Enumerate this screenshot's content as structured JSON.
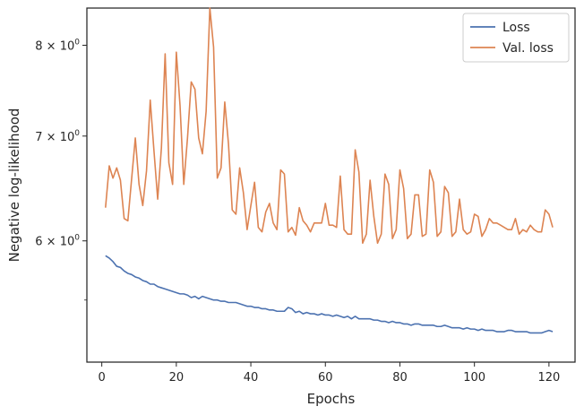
{
  "chart_data": {
    "type": "line",
    "xlabel": "Epochs",
    "ylabel": "Negative log-likelihood",
    "xlim": [
      -4,
      127
    ],
    "ylim": [
      5.02,
      8.45
    ],
    "yscale": "log",
    "grid": false,
    "legend_position": "top-right",
    "x_ticks": [
      {
        "value": 0,
        "label": "0"
      },
      {
        "value": 20,
        "label": "20"
      },
      {
        "value": 40,
        "label": "40"
      },
      {
        "value": 60,
        "label": "60"
      },
      {
        "value": 80,
        "label": "80"
      },
      {
        "value": 100,
        "label": "100"
      },
      {
        "value": 120,
        "label": "120"
      }
    ],
    "y_ticks": [
      {
        "value": 6,
        "base": "6",
        "mult": "10",
        "exp": "0"
      },
      {
        "value": 7,
        "base": "7",
        "mult": "10",
        "exp": "0"
      },
      {
        "value": 8,
        "base": "8",
        "mult": "10",
        "exp": "0"
      }
    ],
    "y_minor_ticks": [
      5.5
    ],
    "series": [
      {
        "name": "Loss",
        "color": "#4c72b0",
        "x_start": 1,
        "values": [
          5.87,
          5.85,
          5.82,
          5.78,
          5.77,
          5.74,
          5.72,
          5.71,
          5.69,
          5.68,
          5.66,
          5.65,
          5.63,
          5.63,
          5.61,
          5.6,
          5.59,
          5.58,
          5.57,
          5.56,
          5.55,
          5.55,
          5.54,
          5.52,
          5.53,
          5.51,
          5.53,
          5.52,
          5.51,
          5.5,
          5.5,
          5.49,
          5.49,
          5.48,
          5.48,
          5.48,
          5.47,
          5.46,
          5.45,
          5.45,
          5.44,
          5.44,
          5.43,
          5.43,
          5.42,
          5.42,
          5.41,
          5.41,
          5.41,
          5.44,
          5.43,
          5.4,
          5.41,
          5.39,
          5.4,
          5.39,
          5.39,
          5.38,
          5.39,
          5.38,
          5.38,
          5.37,
          5.38,
          5.37,
          5.36,
          5.37,
          5.35,
          5.37,
          5.35,
          5.35,
          5.35,
          5.35,
          5.34,
          5.34,
          5.33,
          5.33,
          5.32,
          5.33,
          5.32,
          5.32,
          5.31,
          5.31,
          5.3,
          5.31,
          5.31,
          5.3,
          5.3,
          5.3,
          5.3,
          5.29,
          5.29,
          5.3,
          5.29,
          5.28,
          5.28,
          5.28,
          5.27,
          5.28,
          5.27,
          5.27,
          5.26,
          5.27,
          5.26,
          5.26,
          5.26,
          5.25,
          5.25,
          5.25,
          5.26,
          5.26,
          5.25,
          5.25,
          5.25,
          5.25,
          5.24,
          5.24,
          5.24,
          5.24,
          5.25,
          5.26,
          5.25
        ]
      },
      {
        "name": "Val. loss",
        "color": "#dd8452",
        "x_start": 1,
        "values": [
          6.3,
          6.7,
          6.58,
          6.68,
          6.56,
          6.2,
          6.18,
          6.57,
          6.98,
          6.52,
          6.32,
          6.65,
          7.38,
          6.85,
          6.38,
          6.88,
          7.9,
          6.73,
          6.52,
          7.92,
          7.32,
          6.52,
          6.98,
          7.58,
          7.5,
          6.98,
          6.82,
          7.26,
          8.45,
          7.98,
          6.58,
          6.68,
          7.36,
          6.92,
          6.28,
          6.24,
          6.68,
          6.44,
          6.1,
          6.32,
          6.54,
          6.12,
          6.08,
          6.26,
          6.34,
          6.16,
          6.1,
          6.66,
          6.62,
          6.08,
          6.12,
          6.05,
          6.3,
          6.18,
          6.14,
          6.08,
          6.16,
          6.16,
          6.16,
          6.34,
          6.14,
          6.14,
          6.12,
          6.6,
          6.1,
          6.06,
          6.06,
          6.86,
          6.64,
          5.98,
          6.06,
          6.56,
          6.22,
          5.98,
          6.06,
          6.62,
          6.52,
          6.02,
          6.1,
          6.66,
          6.48,
          6.02,
          6.06,
          6.42,
          6.42,
          6.04,
          6.06,
          6.66,
          6.54,
          6.04,
          6.08,
          6.5,
          6.44,
          6.04,
          6.08,
          6.38,
          6.1,
          6.06,
          6.08,
          6.24,
          6.22,
          6.04,
          6.1,
          6.2,
          6.16,
          6.16,
          6.14,
          6.12,
          6.1,
          6.1,
          6.2,
          6.06,
          6.1,
          6.08,
          6.14,
          6.1,
          6.08,
          6.08,
          6.28,
          6.24,
          6.12
        ]
      }
    ]
  }
}
